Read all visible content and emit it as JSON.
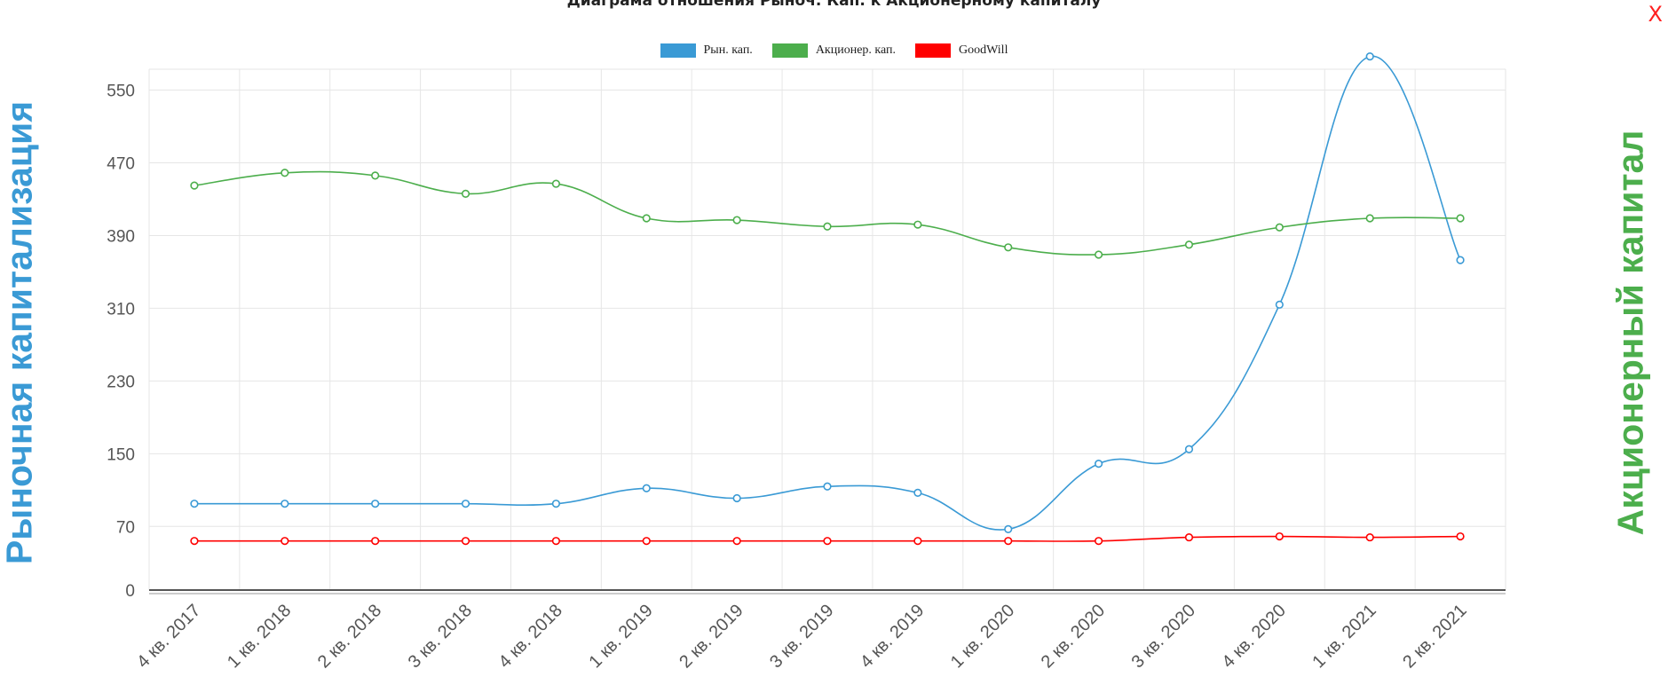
{
  "chart_data": {
    "type": "line",
    "title": "Диаграма отношения Рыноч. Кап. к Акционерному капиталу",
    "ylabel_left": "Рыночная капитализация",
    "ylabel_right": "Акционерный капитал",
    "categories": [
      "4 кв. 2017",
      "1 кв. 2018",
      "2 кв. 2018",
      "3 кв. 2018",
      "4 кв. 2018",
      "1 кв. 2019",
      "2 кв. 2019",
      "3 кв. 2019",
      "4 кв. 2019",
      "1 кв. 2020",
      "2 кв. 2020",
      "3 кв. 2020",
      "4 кв. 2020",
      "1 кв. 2021",
      "2 кв. 2021"
    ],
    "yticks": [
      0,
      70,
      150,
      230,
      310,
      390,
      470,
      550
    ],
    "ylim": [
      0,
      573
    ],
    "grid": true,
    "legend_position": "top-center",
    "series": [
      {
        "name": "Рын. кап.",
        "color": "#3a9ad5",
        "values": [
          95,
          95,
          95,
          95,
          95,
          112,
          101,
          114,
          107,
          67,
          139,
          155,
          314,
          587,
          363
        ]
      },
      {
        "name": "Акционер. кап.",
        "color": "#4cae4c",
        "values": [
          445,
          459,
          456,
          436,
          447,
          409,
          407,
          400,
          402,
          377,
          369,
          380,
          399,
          409,
          409
        ]
      },
      {
        "name": "GoodWill",
        "color": "#ff0000",
        "values": [
          54,
          54,
          54,
          54,
          54,
          54,
          54,
          54,
          54,
          54,
          54,
          58,
          59,
          58,
          59
        ]
      }
    ]
  },
  "close_label": "X"
}
